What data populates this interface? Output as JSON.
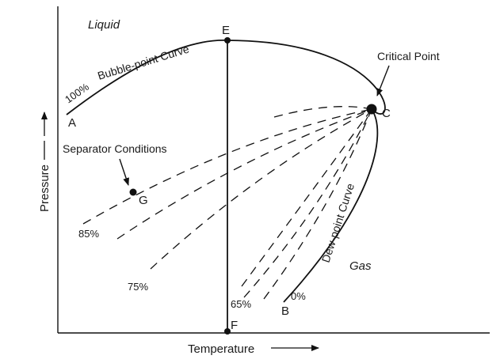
{
  "diagram": {
    "regions": {
      "liquid": "Liquid",
      "gas": "Gas"
    },
    "curves": {
      "bubble_point": "Bubble-point Curve",
      "dew_point": "Dew-point Curve"
    },
    "points": {
      "A": "A",
      "B": "B",
      "C": "C",
      "E": "E",
      "F": "F",
      "G": "G"
    },
    "annotations": {
      "critical_point": "Critical Point",
      "separator_conditions": "Separator Conditions"
    },
    "quality_lines": {
      "q100": "100%",
      "q85": "85%",
      "q75": "75%",
      "q65": "65%",
      "q0": "0%"
    },
    "axes": {
      "x_label": "Temperature",
      "y_label": "Pressure"
    },
    "colors": {
      "ink": "#111111",
      "background": "#ffffff"
    }
  }
}
